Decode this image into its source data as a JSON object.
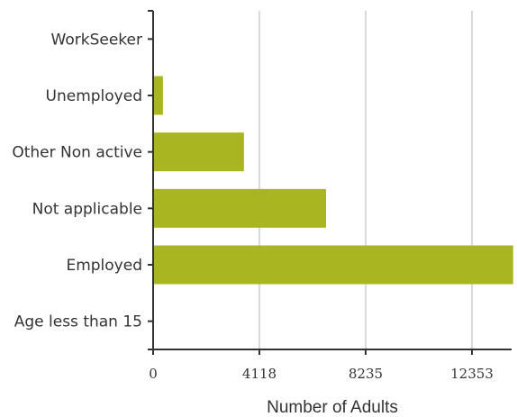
{
  "chart_data": {
    "type": "bar",
    "orientation": "horizontal",
    "categories": [
      "WorkSeeker",
      "Unemployed",
      "Other Non active",
      "Not applicable",
      "Employed",
      "Age less than 15"
    ],
    "values": [
      0,
      380,
      3520,
      6700,
      13950,
      0
    ],
    "xlabel": "Number of Adults",
    "ylabel": "",
    "xlim": [
      0,
      14000
    ],
    "x_ticks": [
      {
        "value": 0,
        "label": "0"
      },
      {
        "value": 4118,
        "label": "4118"
      },
      {
        "value": 8235,
        "label": "8235"
      },
      {
        "value": 12353,
        "label": "12353"
      }
    ],
    "bar_color": "#aab522",
    "grid": true,
    "grid_color": "#d9d9d9",
    "axis_color": "#333333"
  }
}
